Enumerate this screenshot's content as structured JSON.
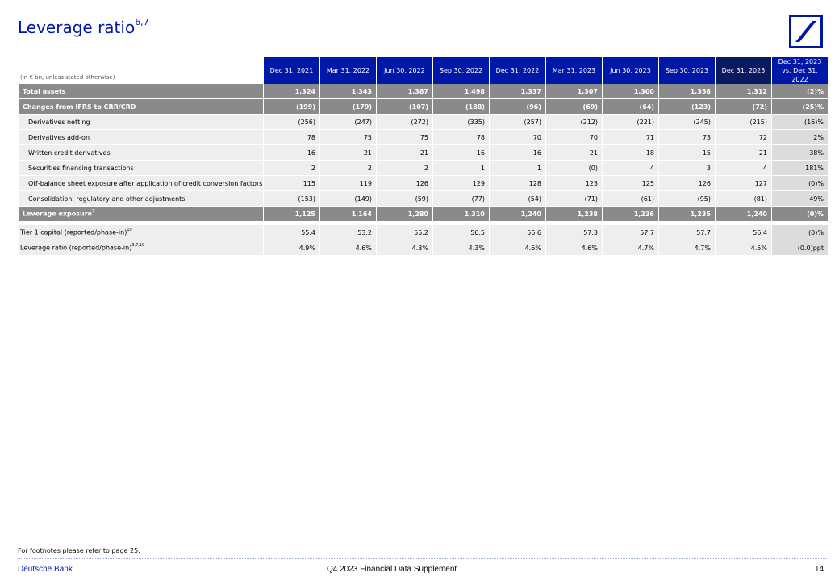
{
  "title": "Leverage ratio",
  "title_footnote": "6,7",
  "logo_name": "deutsche-bank-logo",
  "units": "(In € bn, unless stated otherwise)",
  "columns": [
    "Dec 31, 2021",
    "Mar 31, 2022",
    "Jun 30, 2022",
    "Sep 30, 2022",
    "Dec 31, 2022",
    "Mar 31, 2023",
    "Jun 30, 2023",
    "Sep 30, 2023",
    "Dec 31, 2023",
    "Dec 31, 2023 vs. Dec 31, 2022"
  ],
  "rows": [
    {
      "label": "Total assets",
      "fn": "",
      "style": "grey",
      "values": [
        "1,324",
        "1,343",
        "1,387",
        "1,498",
        "1,337",
        "1,307",
        "1,300",
        "1,358",
        "1,312",
        "(2)%"
      ]
    },
    {
      "label": "Changes from IFRS to CRR/CRD",
      "fn": "",
      "style": "grey",
      "values": [
        "(199)",
        "(179)",
        "(107)",
        "(188)",
        "(96)",
        "(69)",
        "(64)",
        "(123)",
        "(72)",
        "(25)%"
      ]
    },
    {
      "label": "Derivatives netting",
      "fn": "",
      "style": "light",
      "values": [
        "(256)",
        "(247)",
        "(272)",
        "(335)",
        "(257)",
        "(212)",
        "(221)",
        "(245)",
        "(215)",
        "(16)%"
      ]
    },
    {
      "label": "Derivatives add-on",
      "fn": "",
      "style": "light",
      "values": [
        "78",
        "75",
        "75",
        "78",
        "70",
        "70",
        "71",
        "73",
        "72",
        "2%"
      ]
    },
    {
      "label": "Written credit derivatives",
      "fn": "",
      "style": "light",
      "values": [
        "16",
        "21",
        "21",
        "16",
        "16",
        "21",
        "18",
        "15",
        "21",
        "38%"
      ]
    },
    {
      "label": "Securities financing transactions",
      "fn": "",
      "style": "light",
      "values": [
        "2",
        "2",
        "2",
        "1",
        "1",
        "(0)",
        "4",
        "3",
        "4",
        "181%"
      ]
    },
    {
      "label": "Off-balance sheet exposure after application of credit conversion factors",
      "fn": "",
      "style": "light",
      "values": [
        "115",
        "119",
        "126",
        "129",
        "128",
        "123",
        "125",
        "126",
        "127",
        "(0)%"
      ]
    },
    {
      "label": "Consolidation, regulatory and other adjustments",
      "fn": "",
      "style": "light",
      "values": [
        "(153)",
        "(149)",
        "(59)",
        "(77)",
        "(54)",
        "(71)",
        "(61)",
        "(95)",
        "(81)",
        "49%"
      ]
    },
    {
      "label": "Leverage exposure",
      "fn": "7",
      "style": "grey",
      "values": [
        "1,125",
        "1,164",
        "1,280",
        "1,310",
        "1,240",
        "1,238",
        "1,236",
        "1,235",
        "1,240",
        "(0)%"
      ]
    },
    {
      "label": "Tier 1 capital (reported/phase-in)",
      "fn": "19",
      "style": "plain",
      "values": [
        "55.4",
        "53.2",
        "55.2",
        "56.5",
        "56.6",
        "57.3",
        "57.7",
        "57.7",
        "56.4",
        "(0)%"
      ]
    },
    {
      "label": "Leverage ratio (reported/phase-in)",
      "fn": "3,7,19",
      "style": "plain",
      "values": [
        "4.9%",
        "4.6%",
        "4.3%",
        "4.3%",
        "4.6%",
        "4.6%",
        "4.7%",
        "4.7%",
        "4.5%",
        "(0.0)ppt"
      ]
    }
  ],
  "footnote": "For footnotes please refer to page 25.",
  "footer": {
    "left": "Deutsche Bank",
    "center": "Q4 2023 Financial Data Supplement",
    "page": "14"
  },
  "colors": {
    "brand_blue": "#0018a8",
    "header_dark": "#0a1a60",
    "grey_row": "#8a8a8a",
    "light_row": "#eeeeee"
  }
}
